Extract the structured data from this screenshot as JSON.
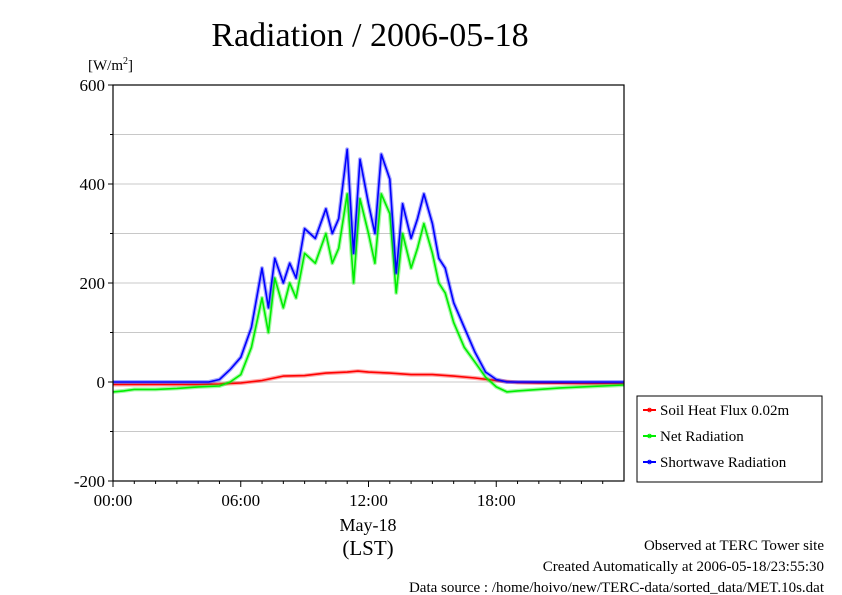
{
  "chart_data": {
    "type": "line",
    "title": "Radiation / 2006-05-18",
    "ylabel_prefix": "[W/m",
    "ylabel_sup": "2",
    "ylabel_suffix": "]",
    "xlabel": "(LST)",
    "date_label": "May-18",
    "ylim": [
      -200,
      600
    ],
    "yticks": [
      -200,
      0,
      200,
      400,
      600
    ],
    "ytick_labels": [
      "-200",
      "0",
      "200",
      "400",
      "600"
    ],
    "xlim": [
      0,
      24
    ],
    "xticks": [
      0,
      6,
      12,
      18
    ],
    "xtick_labels": [
      "00:00",
      "06:00",
      "12:00",
      "18:00"
    ],
    "grid": true,
    "legend_position": "right",
    "series": [
      {
        "name": "Soil Heat Flux 0.02m",
        "color": "#ff0000",
        "x": [
          0,
          2,
          4,
          5,
          6,
          7,
          8,
          9,
          10,
          11,
          11.5,
          12,
          13,
          14,
          15,
          16,
          17,
          18,
          19,
          20,
          22,
          24
        ],
        "y": [
          -5,
          -5,
          -5,
          -4,
          -2,
          3,
          12,
          13,
          18,
          20,
          22,
          20,
          18,
          15,
          15,
          12,
          8,
          3,
          -1,
          -2,
          -3,
          -3
        ]
      },
      {
        "name": "Net Radiation",
        "color": "#00ee00",
        "x": [
          0,
          0.5,
          1,
          2,
          3,
          4,
          5,
          5.5,
          6,
          6.5,
          7,
          7.3,
          7.6,
          8,
          8.3,
          8.6,
          9,
          9.5,
          10,
          10.3,
          10.6,
          11,
          11.3,
          11.6,
          12,
          12.3,
          12.6,
          13,
          13.3,
          13.6,
          14,
          14.3,
          14.6,
          15,
          15.3,
          15.6,
          16,
          16.5,
          17,
          17.5,
          18,
          18.5,
          19,
          20,
          21,
          22,
          23,
          24
        ],
        "y": [
          -20,
          -18,
          -15,
          -15,
          -13,
          -10,
          -8,
          0,
          15,
          70,
          170,
          100,
          210,
          150,
          200,
          170,
          260,
          240,
          300,
          240,
          270,
          380,
          200,
          370,
          300,
          240,
          380,
          340,
          180,
          300,
          230,
          270,
          320,
          260,
          200,
          180,
          120,
          70,
          40,
          10,
          -10,
          -20,
          -18,
          -15,
          -12,
          -10,
          -8,
          -6
        ]
      },
      {
        "name": "Shortwave Radiation",
        "color": "#0000ff",
        "x": [
          0,
          1,
          2,
          3,
          4,
          4.5,
          5,
          5.5,
          6,
          6.5,
          7,
          7.3,
          7.6,
          8,
          8.3,
          8.6,
          9,
          9.5,
          10,
          10.3,
          10.6,
          11,
          11.3,
          11.6,
          12,
          12.3,
          12.6,
          13,
          13.3,
          13.6,
          14,
          14.3,
          14.6,
          15,
          15.3,
          15.6,
          16,
          16.5,
          17,
          17.5,
          18,
          18.5,
          19,
          20,
          21,
          22,
          23,
          24
        ],
        "y": [
          0,
          0,
          0,
          0,
          0,
          0,
          5,
          25,
          50,
          110,
          230,
          150,
          250,
          200,
          240,
          210,
          310,
          290,
          350,
          300,
          330,
          470,
          260,
          450,
          360,
          300,
          460,
          410,
          220,
          360,
          290,
          330,
          380,
          320,
          250,
          230,
          160,
          110,
          60,
          20,
          5,
          0,
          0,
          0,
          0,
          0,
          0,
          0
        ]
      }
    ]
  },
  "footer": {
    "line1": "Observed at TERC Tower site",
    "line2": "Created Automatically at 2006-05-18/23:55:30",
    "line3": "Data source : /home/hoivo/new/TERC-data/sorted_data/MET.10s.dat"
  }
}
